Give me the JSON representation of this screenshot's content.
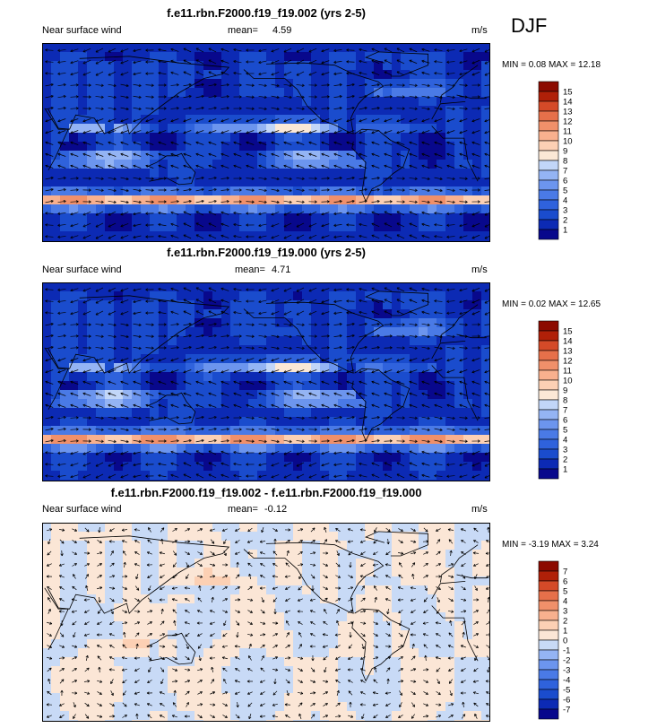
{
  "season": "DJF",
  "panels": [
    {
      "title": "f.e11.rbn.F2000.f19_f19.002 (yrs 2-5)",
      "left_label": "Near surface wind",
      "mean_label": "mean=",
      "mean_value": "4.59",
      "units": "m/s",
      "minmax": "MIN =  0.08 MAX = 12.18"
    },
    {
      "title": "f.e11.rbn.F2000.f19_f19.000 (yrs 2-5)",
      "left_label": "Near surface wind",
      "mean_label": "mean=",
      "mean_value": "4.71",
      "units": "m/s",
      "minmax": "MIN =  0.02 MAX = 12.65"
    },
    {
      "title": "f.e11.rbn.F2000.f19_f19.002 - f.e11.rbn.F2000.f19_f19.000",
      "left_label": "Near surface wind",
      "mean_label": "mean=",
      "mean_value": "-0.12",
      "units": "m/s",
      "minmax": "MIN = -3.19 MAX =  3.24"
    }
  ],
  "chart_data": [
    {
      "type": "heatmap",
      "title": "f.e11.rbn.F2000.f19_f19.002 (yrs 2-5)",
      "variable": "Near surface wind",
      "units": "m/s",
      "mean": 4.59,
      "min": 0.08,
      "max": 12.18,
      "levels": [
        1,
        2,
        3,
        4,
        5,
        6,
        7,
        8,
        9,
        10,
        11,
        12,
        13,
        14,
        15
      ],
      "colors": [
        "#08088c",
        "#0c2ab4",
        "#1a4ccd",
        "#2f62dc",
        "#4a7ae6",
        "#6c95ee",
        "#94b4f4",
        "#c2d6f8",
        "#fbe8d6",
        "#fcd0b4",
        "#f8b08e",
        "#f0906a",
        "#e6704a",
        "#d44a28",
        "#b02008",
        "#8c0a00"
      ]
    },
    {
      "type": "heatmap",
      "title": "f.e11.rbn.F2000.f19_f19.000 (yrs 2-5)",
      "variable": "Near surface wind",
      "units": "m/s",
      "mean": 4.71,
      "min": 0.02,
      "max": 12.65,
      "levels": [
        1,
        2,
        3,
        4,
        5,
        6,
        7,
        8,
        9,
        10,
        11,
        12,
        13,
        14,
        15
      ],
      "colors": [
        "#08088c",
        "#0c2ab4",
        "#1a4ccd",
        "#2f62dc",
        "#4a7ae6",
        "#6c95ee",
        "#94b4f4",
        "#c2d6f8",
        "#fbe8d6",
        "#fcd0b4",
        "#f8b08e",
        "#f0906a",
        "#e6704a",
        "#d44a28",
        "#b02008",
        "#8c0a00"
      ]
    },
    {
      "type": "heatmap",
      "title": "f.e11.rbn.F2000.f19_f19.002 - f.e11.rbn.F2000.f19_f19.000",
      "variable": "Near surface wind",
      "units": "m/s",
      "mean": -0.12,
      "min": -3.19,
      "max": 3.24,
      "levels": [
        -7,
        -6,
        -5,
        -4,
        -3,
        -2,
        -1,
        0,
        1,
        2,
        3,
        4,
        5,
        6,
        7
      ],
      "colors": [
        "#08088c",
        "#0c2ab4",
        "#1a4ccd",
        "#2f62dc",
        "#4a7ae6",
        "#6c95ee",
        "#94b4f4",
        "#c8daf6",
        "#fbe6d6",
        "#fcd0b4",
        "#f8b08e",
        "#f0906a",
        "#e6704a",
        "#d44a28",
        "#b02008",
        "#8c0a00"
      ]
    }
  ]
}
